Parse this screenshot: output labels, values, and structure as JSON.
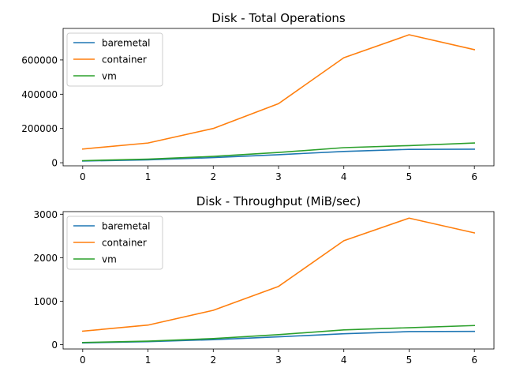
{
  "chart_data": [
    {
      "type": "line",
      "title": "Disk - Total Operations",
      "xlabel": "",
      "ylabel": "",
      "x": [
        0,
        1,
        2,
        3,
        4,
        5,
        6
      ],
      "xlim": [
        -0.3,
        6.3
      ],
      "ylim": [
        -18000,
        784000
      ],
      "yticks": [
        0,
        200000,
        400000,
        600000
      ],
      "legend": "top-left",
      "grid": false,
      "series": [
        {
          "name": "baremetal",
          "color": "#1f77b4",
          "values": [
            10000,
            17000,
            30000,
            47000,
            66000,
            78000,
            79000
          ]
        },
        {
          "name": "container",
          "color": "#ff7f0e",
          "values": [
            80000,
            115000,
            200000,
            345000,
            613000,
            747000,
            660000
          ]
        },
        {
          "name": "vm",
          "color": "#2ca02c",
          "values": [
            12000,
            21000,
            37000,
            60000,
            88000,
            100000,
            115000
          ]
        }
      ]
    },
    {
      "type": "line",
      "title": "Disk - Throughput (MiB/sec)",
      "xlabel": "",
      "ylabel": "",
      "x": [
        0,
        1,
        2,
        3,
        4,
        5,
        6
      ],
      "xlim": [
        -0.3,
        6.3
      ],
      "ylim": [
        -100,
        3060
      ],
      "yticks": [
        0,
        1000,
        2000,
        3000
      ],
      "legend": "top-left",
      "grid": false,
      "series": [
        {
          "name": "baremetal",
          "color": "#1f77b4",
          "values": [
            40,
            70,
            115,
            180,
            250,
            300,
            305
          ]
        },
        {
          "name": "container",
          "color": "#ff7f0e",
          "values": [
            310,
            450,
            790,
            1340,
            2390,
            2910,
            2570
          ]
        },
        {
          "name": "vm",
          "color": "#2ca02c",
          "values": [
            50,
            80,
            140,
            230,
            340,
            390,
            440
          ]
        }
      ]
    }
  ]
}
